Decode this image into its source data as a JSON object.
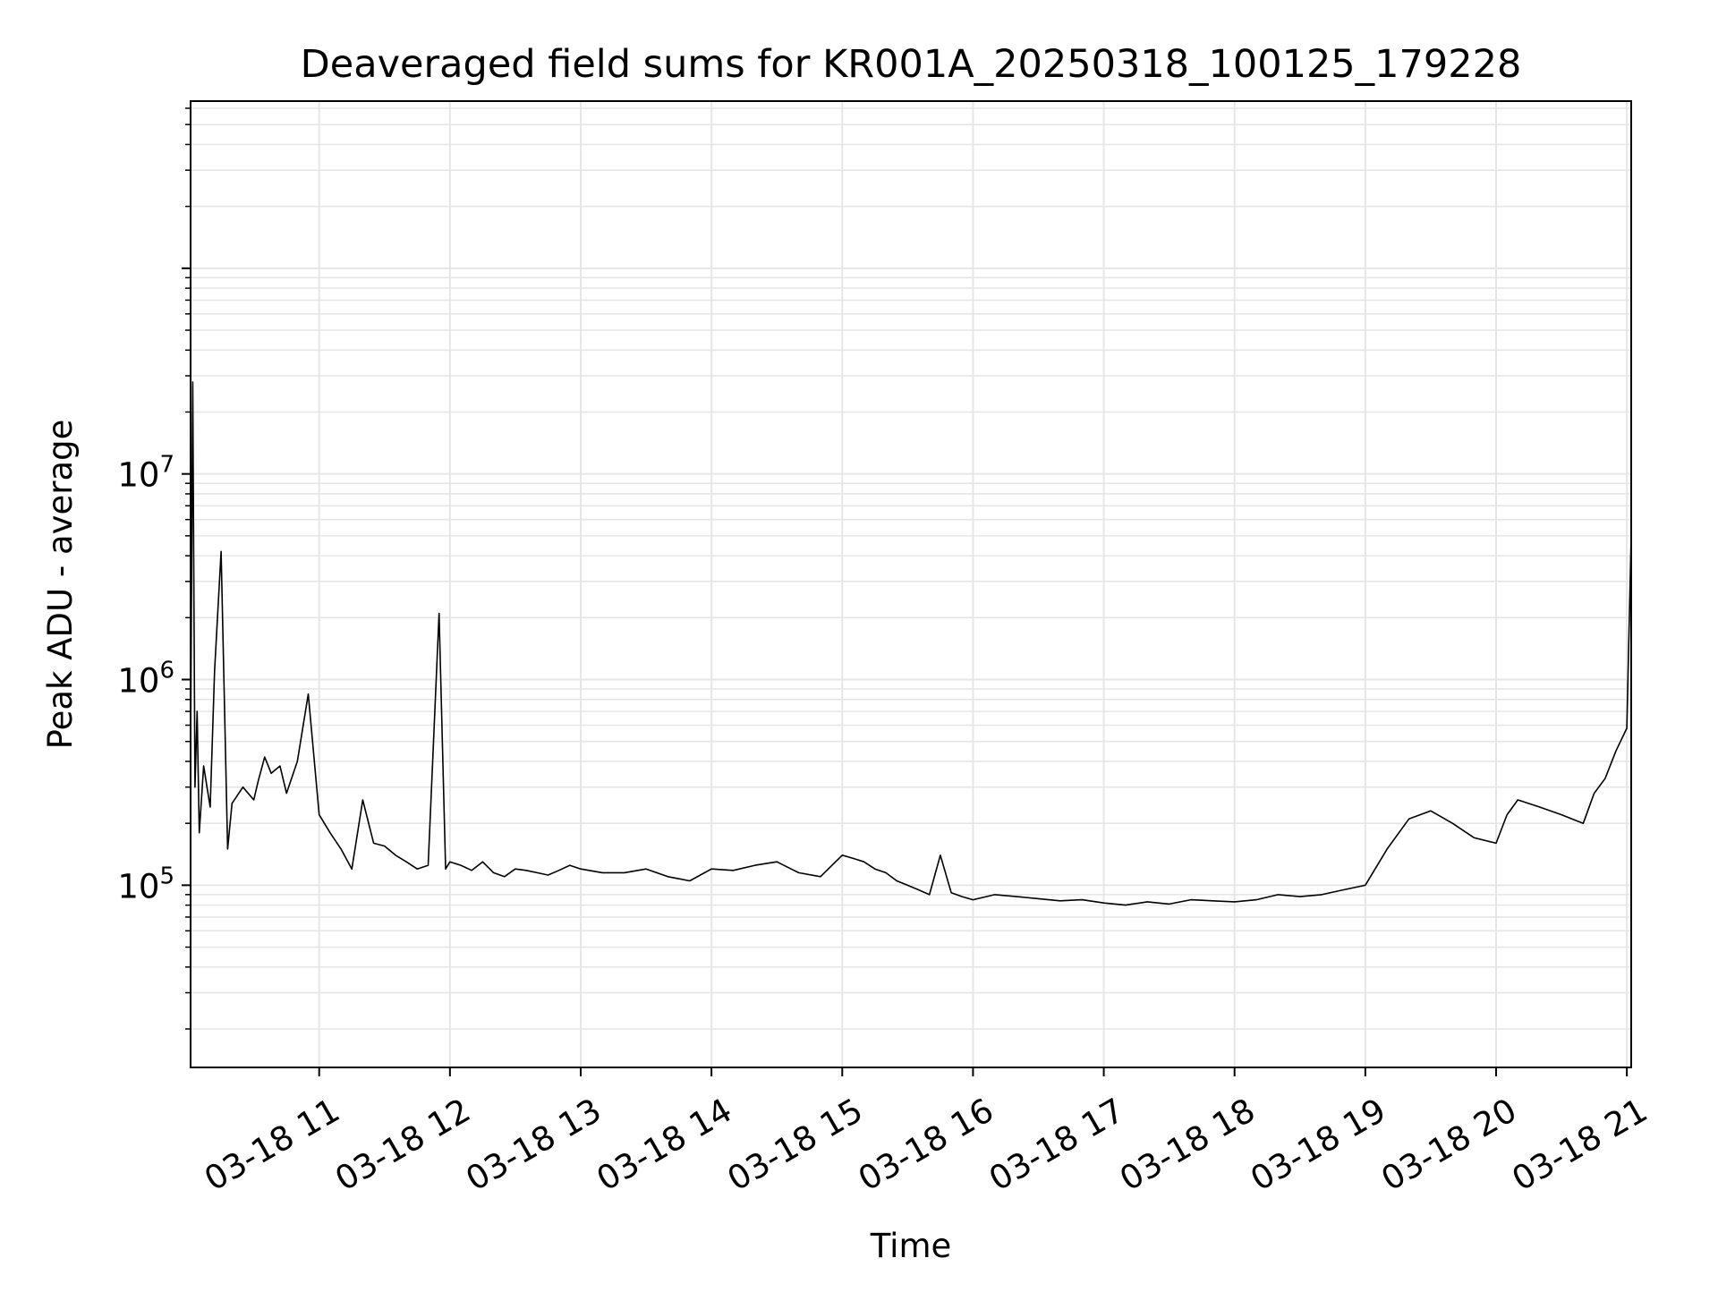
{
  "chart_data": {
    "type": "line",
    "title": "Deaveraged field sums for KR001A_20250318_100125_179228",
    "xlabel": "Time",
    "ylabel": "Peak ADU - average",
    "yscale": "log",
    "grid": true,
    "xlim": [
      "03-18 10:01",
      "03-18 21:02"
    ],
    "ylim": [
      13000,
      650000000
    ],
    "x_ticks": [
      {
        "value": "03-18 11:00",
        "label": "03-18 11"
      },
      {
        "value": "03-18 12:00",
        "label": "03-18 12"
      },
      {
        "value": "03-18 13:00",
        "label": "03-18 13"
      },
      {
        "value": "03-18 14:00",
        "label": "03-18 14"
      },
      {
        "value": "03-18 15:00",
        "label": "03-18 15"
      },
      {
        "value": "03-18 16:00",
        "label": "03-18 16"
      },
      {
        "value": "03-18 17:00",
        "label": "03-18 17"
      },
      {
        "value": "03-18 18:00",
        "label": "03-18 18"
      },
      {
        "value": "03-18 19:00",
        "label": "03-18 19"
      },
      {
        "value": "03-18 20:00",
        "label": "03-18 20"
      },
      {
        "value": "03-18 21:00",
        "label": "03-18 21"
      }
    ],
    "y_ticks": [
      {
        "value": 100000,
        "base": "10",
        "exp": "5"
      },
      {
        "value": 1000000,
        "base": "10",
        "exp": "6"
      },
      {
        "value": 10000000,
        "base": "10",
        "exp": "7"
      }
    ],
    "line_color": "#000000",
    "series": [
      {
        "x": [
          "03-18 10:01",
          "03-18 10:02",
          "03-18 10:03",
          "03-18 10:04",
          "03-18 10:05",
          "03-18 10:07",
          "03-18 10:10",
          "03-18 10:12",
          "03-18 10:15",
          "03-18 10:18",
          "03-18 10:20",
          "03-18 10:25",
          "03-18 10:30",
          "03-18 10:32",
          "03-18 10:35",
          "03-18 10:38",
          "03-18 10:42",
          "03-18 10:45",
          "03-18 10:50",
          "03-18 10:55",
          "03-18 11:00",
          "03-18 11:05",
          "03-18 11:10",
          "03-18 11:15",
          "03-18 11:20",
          "03-18 11:25",
          "03-18 11:30",
          "03-18 11:35",
          "03-18 11:40",
          "03-18 11:45",
          "03-18 11:50",
          "03-18 11:55",
          "03-18 11:58",
          "03-18 12:00",
          "03-18 12:05",
          "03-18 12:10",
          "03-18 12:15",
          "03-18 12:20",
          "03-18 12:25",
          "03-18 12:30",
          "03-18 12:35",
          "03-18 12:40",
          "03-18 12:45",
          "03-18 12:50",
          "03-18 12:55",
          "03-18 13:00",
          "03-18 13:10",
          "03-18 13:20",
          "03-18 13:30",
          "03-18 13:40",
          "03-18 13:50",
          "03-18 14:00",
          "03-18 14:10",
          "03-18 14:20",
          "03-18 14:30",
          "03-18 14:40",
          "03-18 14:50",
          "03-18 15:00",
          "03-18 15:05",
          "03-18 15:10",
          "03-18 15:15",
          "03-18 15:20",
          "03-18 15:25",
          "03-18 15:30",
          "03-18 15:35",
          "03-18 15:40",
          "03-18 15:45",
          "03-18 15:50",
          "03-18 15:55",
          "03-18 16:00",
          "03-18 16:10",
          "03-18 16:20",
          "03-18 16:30",
          "03-18 16:40",
          "03-18 16:50",
          "03-18 17:00",
          "03-18 17:10",
          "03-18 17:20",
          "03-18 17:30",
          "03-18 17:40",
          "03-18 17:50",
          "03-18 18:00",
          "03-18 18:10",
          "03-18 18:20",
          "03-18 18:30",
          "03-18 18:40",
          "03-18 18:50",
          "03-18 19:00",
          "03-18 19:10",
          "03-18 19:20",
          "03-18 19:30",
          "03-18 19:40",
          "03-18 19:50",
          "03-18 20:00",
          "03-18 20:05",
          "03-18 20:10",
          "03-18 20:20",
          "03-18 20:30",
          "03-18 20:40",
          "03-18 20:45",
          "03-18 20:50",
          "03-18 20:55",
          "03-18 21:00",
          "03-18 21:02"
        ],
        "y": [
          450000,
          28000000,
          300000,
          700000,
          180000,
          380000,
          240000,
          1100000,
          4200000,
          150000,
          250000,
          300000,
          260000,
          320000,
          420000,
          350000,
          380000,
          280000,
          400000,
          850000,
          220000,
          180000,
          150000,
          120000,
          260000,
          160000,
          155000,
          140000,
          130000,
          120000,
          125000,
          2100000,
          120000,
          130000,
          125000,
          118000,
          130000,
          115000,
          110000,
          120000,
          118000,
          115000,
          112000,
          118000,
          125000,
          120000,
          115000,
          115000,
          120000,
          110000,
          105000,
          120000,
          118000,
          125000,
          130000,
          115000,
          110000,
          140000,
          135000,
          130000,
          120000,
          115000,
          105000,
          100000,
          95000,
          90000,
          140000,
          92000,
          88000,
          85000,
          90000,
          88000,
          86000,
          84000,
          85000,
          82000,
          80000,
          83000,
          81000,
          85000,
          84000,
          83000,
          85000,
          90000,
          88000,
          90000,
          95000,
          100000,
          150000,
          210000,
          230000,
          200000,
          170000,
          160000,
          220000,
          260000,
          240000,
          220000,
          200000,
          280000,
          330000,
          450000,
          580000,
          5000000
        ]
      }
    ]
  }
}
